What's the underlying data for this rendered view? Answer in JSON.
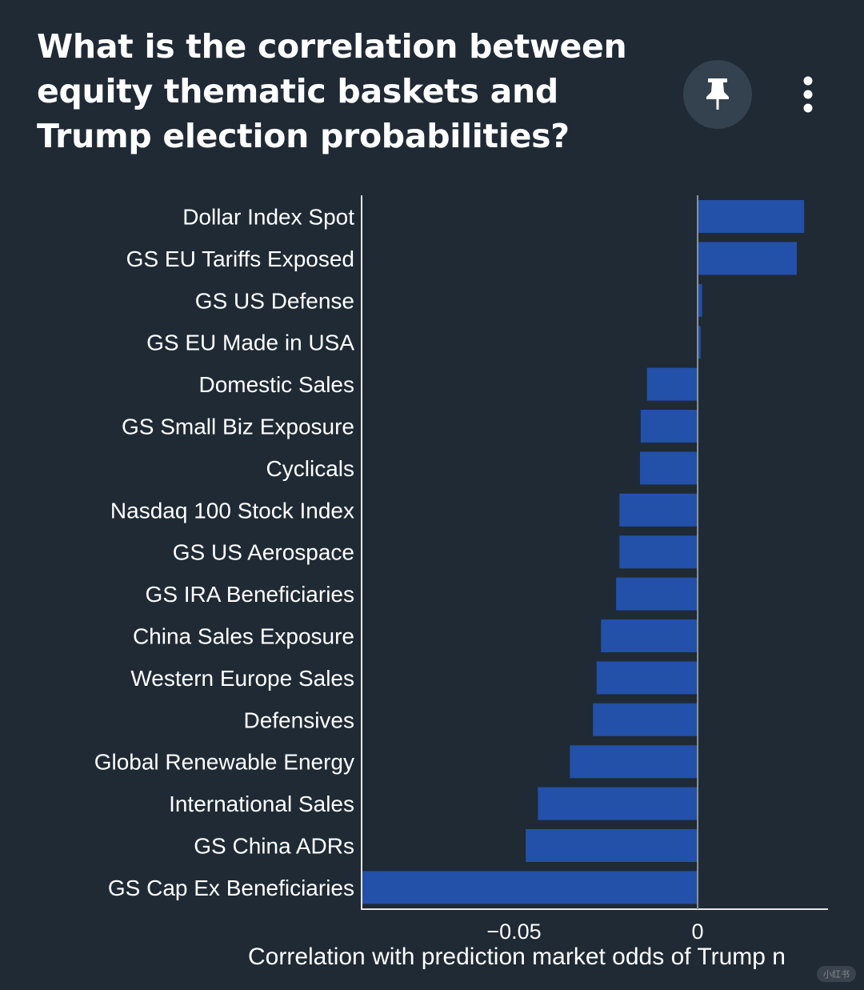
{
  "header": {
    "title": "What is the correlation between equity thematic baskets and Trump election probabilities?",
    "pin_icon": "pin-icon",
    "more_icon": "more-vertical-icon"
  },
  "chart_data": {
    "type": "bar",
    "orientation": "horizontal",
    "title": "What is the correlation between equity thematic baskets and Trump election probabilities?",
    "xlabel": "Correlation with prediction market odds of Trump n",
    "ylabel": "",
    "xlim": [
      -0.0915,
      0.0355
    ],
    "xticks": [
      {
        "value": -0.05,
        "label": "−0.05"
      },
      {
        "value": 0,
        "label": "0"
      }
    ],
    "grid": false,
    "legend": "none",
    "bar_color": "#2350a8",
    "categories": [
      "Dollar Index Spot",
      "GS EU Tariffs Exposed",
      "GS US Defense",
      "GS EU Made in USA",
      "Domestic Sales",
      "GS Small Biz Exposure",
      "Cyclicals",
      "Nasdaq 100 Stock Index",
      "GS US Aerospace",
      "GS IRA Beneficiaries",
      "China Sales Exposure",
      "Western Europe Sales",
      "Defensives",
      "Global Renewable Energy",
      "International Sales",
      "GS China ADRs",
      "GS Cap Ex Beneficiaries"
    ],
    "values": [
      0.029,
      0.027,
      0.0012,
      0.0008,
      -0.0138,
      -0.0155,
      -0.0157,
      -0.0213,
      -0.0213,
      -0.0222,
      -0.0263,
      -0.0275,
      -0.0285,
      -0.0348,
      -0.0435,
      -0.0468,
      -0.0917
    ]
  },
  "watermark": "小红书"
}
